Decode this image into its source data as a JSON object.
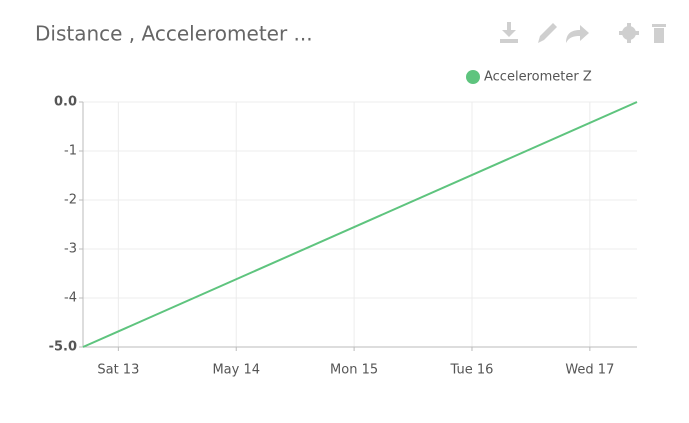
{
  "header": {
    "title": "Distance , Accelerometer ..."
  },
  "chart_data": {
    "type": "line",
    "x": [
      12.7,
      17.4
    ],
    "series": [
      {
        "name": "Accelerometer Z",
        "color": "#5ec47e",
        "values": [
          -5,
          0
        ]
      }
    ],
    "xlim": [
      12.7,
      17.4
    ],
    "xticks": [
      {
        "value": 13,
        "label": "Sat 13"
      },
      {
        "value": 14,
        "label": "May 14"
      },
      {
        "value": 15,
        "label": "Mon 15"
      },
      {
        "value": 16,
        "label": "Tue 16"
      },
      {
        "value": 17,
        "label": "Wed 17"
      }
    ],
    "ylim": [
      -5,
      0
    ],
    "yticks": [
      {
        "value": 0,
        "label": "0.0"
      },
      -1,
      -2,
      -3,
      -4,
      {
        "value": -5,
        "label": "-5.0"
      }
    ],
    "grid": true,
    "legend": "top-right"
  }
}
